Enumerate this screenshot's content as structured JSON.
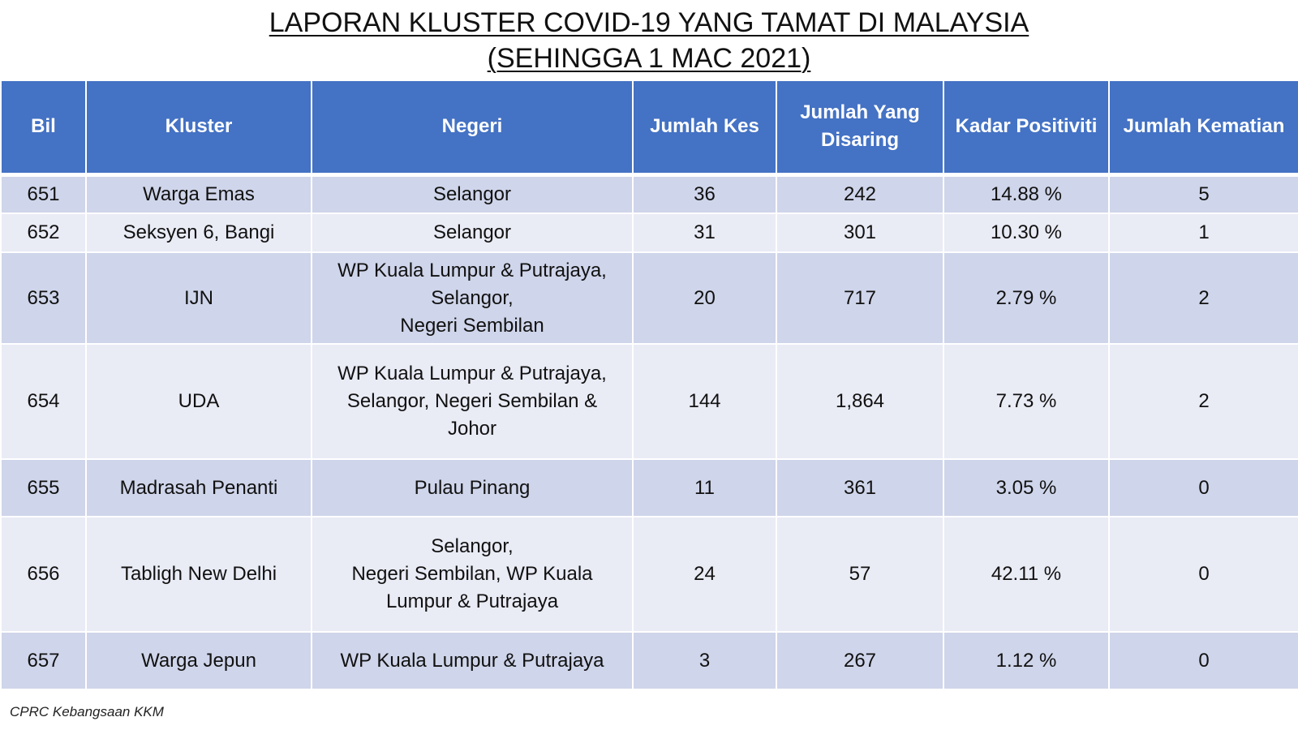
{
  "title": {
    "line1": "LAPORAN KLUSTER COVID-19 YANG TAMAT DI MALAYSIA",
    "line2": "(SEHINGGA 1 MAC 2021)"
  },
  "table": {
    "headers": {
      "bil": "Bil",
      "kluster": "Kluster",
      "negeri": "Negeri",
      "jumlah_kes": "Jumlah Kes",
      "jumlah_disaring": "Jumlah Yang\nDisaring",
      "kadar_positiviti": "Kadar Positiviti",
      "jumlah_kematian": "Jumlah Kematian"
    },
    "rows": [
      {
        "bil": "651",
        "kluster": "Warga Emas",
        "negeri": "Selangor",
        "jumlah_kes": "36",
        "jumlah_disaring": "242",
        "kadar_positiviti": "14.88 %",
        "jumlah_kematian": "5"
      },
      {
        "bil": "652",
        "kluster": "Seksyen 6, Bangi",
        "negeri": "Selangor",
        "jumlah_kes": "31",
        "jumlah_disaring": "301",
        "kadar_positiviti": "10.30 %",
        "jumlah_kematian": "1"
      },
      {
        "bil": "653",
        "kluster": "IJN",
        "negeri": "WP Kuala Lumpur & Putrajaya,\nSelangor,\nNegeri Sembilan",
        "jumlah_kes": "20",
        "jumlah_disaring": "717",
        "kadar_positiviti": "2.79 %",
        "jumlah_kematian": "2"
      },
      {
        "bil": "654",
        "kluster": "UDA",
        "negeri": "WP Kuala Lumpur & Putrajaya,\nSelangor, Negeri Sembilan &\nJohor",
        "jumlah_kes": "144",
        "jumlah_disaring": "1,864",
        "kadar_positiviti": "7.73 %",
        "jumlah_kematian": "2"
      },
      {
        "bil": "655",
        "kluster": "Madrasah Penanti",
        "negeri": "Pulau Pinang",
        "jumlah_kes": "11",
        "jumlah_disaring": "361",
        "kadar_positiviti": "3.05 %",
        "jumlah_kematian": "0"
      },
      {
        "bil": "656",
        "kluster": "Tabligh New Delhi",
        "negeri": "Selangor,\nNegeri Sembilan, WP Kuala\nLumpur & Putrajaya",
        "jumlah_kes": "24",
        "jumlah_disaring": "57",
        "kadar_positiviti": "42.11 %",
        "jumlah_kematian": "0"
      },
      {
        "bil": "657",
        "kluster": "Warga Jepun",
        "negeri": "WP Kuala Lumpur & Putrajaya",
        "jumlah_kes": "3",
        "jumlah_disaring": "267",
        "kadar_positiviti": "1.12 %",
        "jumlah_kematian": "0"
      }
    ]
  },
  "source": "CPRC Kebangsaan KKM",
  "colors": {
    "header_bg": "#4472c4",
    "row_band_dark": "#cfd5ea",
    "row_band_light": "#e9ebf5"
  }
}
